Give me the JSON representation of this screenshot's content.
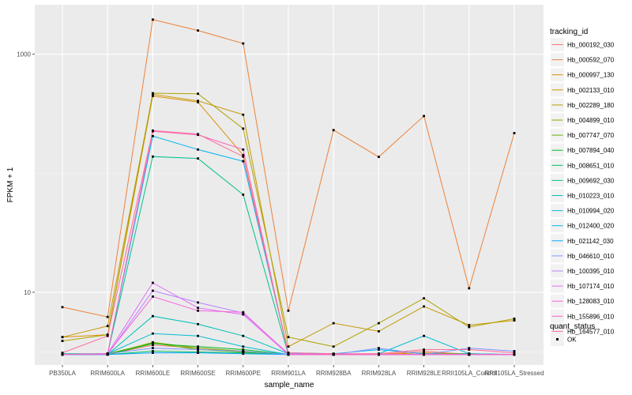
{
  "chart_data": {
    "type": "line",
    "title": "",
    "xlabel": "sample_name",
    "ylabel": "FPKM + 1",
    "y_scale": "log10",
    "ylim": [
      2.45,
      2600
    ],
    "y_ticks": [
      {
        "value": 10,
        "label": "10"
      },
      {
        "value": 1000,
        "label": "1000"
      }
    ],
    "grid": true,
    "panel_background": "#ebebeb",
    "legend_position": "right",
    "categories": [
      "PB350LA",
      "RRIM600LA",
      "RRIM600LE",
      "RRIM600SE",
      "RRIM600PE",
      "RRIM901LA",
      "RRIM928BA",
      "RRIM928LA",
      "RRIM928LE",
      "RRII105LA_Control",
      "RRII105LA_Stressed"
    ],
    "legend": {
      "title": "tracking_id",
      "entries": [
        "Hb_000192_030",
        "Hb_000592_070",
        "Hb_000997_130",
        "Hb_002133_010",
        "Hb_002289_180",
        "Hb_004899_010",
        "Hb_007747_070",
        "Hb_007894_040",
        "Hb_008651_010",
        "Hb_009692_030",
        "Hb_010223_010",
        "Hb_010994_020",
        "Hb_012400_020",
        "Hb_021142_030",
        "Hb_046610_010",
        "Hb_100395_010",
        "Hb_107174_010",
        "Hb_128083_010",
        "Hb_155896_010",
        "Hb_164577_010"
      ]
    },
    "shape_legend": {
      "title": "quant_status",
      "entries": [
        "OK"
      ]
    },
    "series": [
      {
        "name": "Hb_000192_030",
        "color": "#F8766D",
        "values": [
          3.0,
          3.0,
          3.6,
          3.4,
          3.15,
          3.0,
          3.0,
          3.0,
          3.2,
          3.0,
          3.0
        ]
      },
      {
        "name": "Hb_000592_070",
        "color": "#EC8239",
        "values": [
          7.5,
          6.2,
          1950,
          1580,
          1230,
          7.0,
          230,
          137,
          302,
          10.8,
          217
        ]
      },
      {
        "name": "Hb_000997_130",
        "color": "#DB8E00",
        "values": [
          4.2,
          4.4,
          445,
          395,
          142,
          3.05,
          3.0,
          3.0,
          3.1,
          3.05,
          3.0
        ]
      },
      {
        "name": "Hb_002133_010",
        "color": "#C79800",
        "values": [
          4.2,
          5.2,
          460,
          405,
          310,
          3.5,
          5.5,
          4.7,
          7.6,
          5.3,
          5.8
        ]
      },
      {
        "name": "Hb_002289_180",
        "color": "#AEA200",
        "values": [
          3.9,
          4.4,
          470,
          465,
          237,
          4.2,
          3.5,
          5.5,
          8.9,
          5.1,
          6.0
        ]
      },
      {
        "name": "Hb_004899_010",
        "color": "#8FAA00",
        "values": [
          3.0,
          3.0,
          3.8,
          3.4,
          3.2,
          3.0,
          3.0,
          3.0,
          3.0,
          3.0,
          3.0
        ]
      },
      {
        "name": "Hb_007747_070",
        "color": "#64B200",
        "values": [
          3.0,
          3.05,
          3.75,
          3.3,
          3.15,
          3.0,
          3.0,
          3.0,
          3.0,
          3.0,
          3.0
        ]
      },
      {
        "name": "Hb_007894_040",
        "color": "#00B81B",
        "values": [
          3.0,
          3.0,
          3.7,
          3.5,
          3.3,
          3.0,
          3.0,
          3.0,
          3.0,
          3.0,
          3.0
        ]
      },
      {
        "name": "Hb_008651_010",
        "color": "#00BD5C",
        "values": [
          3.0,
          3.0,
          3.2,
          3.15,
          3.1,
          3.0,
          3.0,
          3.0,
          3.0,
          3.0,
          3.0
        ]
      },
      {
        "name": "Hb_009692_030",
        "color": "#00C08E",
        "values": [
          3.05,
          3.05,
          138,
          133,
          66,
          3.0,
          3.0,
          3.0,
          3.0,
          3.0,
          3.0
        ]
      },
      {
        "name": "Hb_010223_010",
        "color": "#00C1B7",
        "values": [
          3.0,
          3.0,
          6.3,
          5.4,
          4.3,
          3.05,
          3.0,
          3.0,
          3.0,
          3.05,
          3.0
        ]
      },
      {
        "name": "Hb_010994_020",
        "color": "#00BDD4",
        "values": [
          3.0,
          3.05,
          4.5,
          4.3,
          3.5,
          3.0,
          3.0,
          3.05,
          4.3,
          3.05,
          3.0
        ]
      },
      {
        "name": "Hb_012400_020",
        "color": "#00B5EE",
        "values": [
          3.0,
          3.05,
          205,
          158,
          126,
          3.1,
          3.05,
          3.3,
          3.05,
          3.0,
          3.0
        ]
      },
      {
        "name": "Hb_021142_030",
        "color": "#00A7FF",
        "values": [
          3.0,
          3.0,
          3.1,
          3.1,
          3.05,
          3.0,
          3.0,
          3.0,
          3.0,
          3.0,
          3.0
        ]
      },
      {
        "name": "Hb_046610_010",
        "color": "#7F96FF",
        "values": [
          3.0,
          3.05,
          3.4,
          3.3,
          3.2,
          3.0,
          3.0,
          3.4,
          3.0,
          3.4,
          3.2
        ]
      },
      {
        "name": "Hb_100395_010",
        "color": "#BC81FF",
        "values": [
          3.0,
          3.0,
          10.3,
          8.2,
          6.7,
          3.05,
          3.0,
          3.0,
          3.0,
          3.0,
          3.0
        ]
      },
      {
        "name": "Hb_107174_010",
        "color": "#E26EF7",
        "values": [
          3.0,
          3.05,
          12,
          7.4,
          6.5,
          3.0,
          3.0,
          3.0,
          3.0,
          3.0,
          3.0
        ]
      },
      {
        "name": "Hb_128083_010",
        "color": "#F863DF",
        "values": [
          3.0,
          3.05,
          9.2,
          7.0,
          6.8,
          3.0,
          3.0,
          3.0,
          3.0,
          3.0,
          3.0
        ]
      },
      {
        "name": "Hb_155896_010",
        "color": "#FF62BF",
        "values": [
          3.0,
          3.05,
          225,
          210,
          158,
          3.0,
          3.0,
          3.0,
          3.0,
          3.0,
          3.0
        ]
      },
      {
        "name": "Hb_164577_010",
        "color": "#FF6A98",
        "values": [
          3.1,
          4.3,
          228,
          213,
          138,
          3.1,
          3.05,
          3.05,
          3.3,
          3.3,
          3.1
        ]
      }
    ]
  }
}
